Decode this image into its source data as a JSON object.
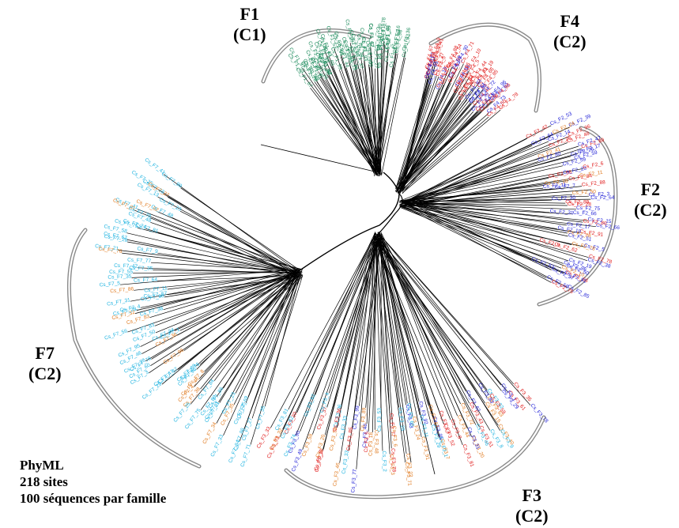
{
  "clades": [
    {
      "id": "F1",
      "name": "F1",
      "cls": "(C1)"
    },
    {
      "id": "F4",
      "name": "F4",
      "cls": "(C2)"
    },
    {
      "id": "F2",
      "name": "F2",
      "cls": "(C2)"
    },
    {
      "id": "F3",
      "name": "F3",
      "cls": "(C2)"
    },
    {
      "id": "F7",
      "name": "F7",
      "cls": "(C2)"
    }
  ],
  "info": {
    "method": "PhyML",
    "sites": "218 sites",
    "sequences": "100 séquences par famille"
  },
  "colors": {
    "F1": "#1a8a5a",
    "F4": "#e01b1b",
    "F2": "#1f1fd6",
    "F3": "#e07a1f",
    "F7": "#1fb3e0",
    "branch": "#000000",
    "bracket": "#7a7a7a"
  },
  "sample_leaf_labels": [
    "Cs_F1_56",
    "Cs_F1_24",
    "Cs_F1_42",
    "Cs_F4_74",
    "Cs_F4_10",
    "Cs_F4_49",
    "Cs_F4_38",
    "Cs_F4_1",
    "Cs_F4_22",
    "Cs_F4_21",
    "Cs_F2_4",
    "Cs_F2_94",
    "Cs_F2_74",
    "Cs_F4_6",
    "Cs_F2_7",
    "Cs_F3_61",
    "Cs_F3_44",
    "Cs_F3_1",
    "Cs_F2_98",
    "Cs_F3_59",
    "Cs_F2_20",
    "Cs_F2_39",
    "Cs_F7_86",
    "Cs_F3_20",
    "Cs_F7_4",
    "Cs_F7_61",
    "Cs_F7_41",
    "Cs_F7_45",
    "Cs_F7_13",
    "Cs_F3_56",
    "Cs_F3_54",
    "Cs_F2_47",
    "Cs_F2_53",
    "Cs_F7_51"
  ]
}
